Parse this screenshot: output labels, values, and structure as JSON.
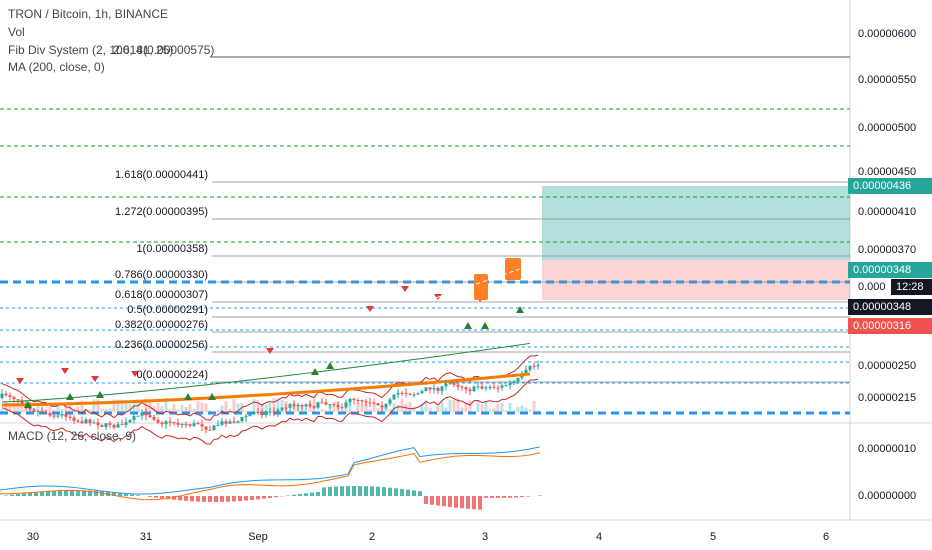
{
  "header": {
    "symbol": "TRON / Bitcoin, 1h, BINANCE",
    "vol": "Vol",
    "fib_div": "Fib Div System (2, 100, 41, 25)",
    "fib_ext": "2.618(0.00000575)",
    "ma": "MA (200, close, 0)"
  },
  "fib_levels": [
    "1.618(0.00000441)",
    "1.272(0.00000395)",
    "1(0.00000358)",
    "0.786(0.00000330)",
    "0.618(0.00000307)",
    "0.5(0.00000291)",
    "0.382(0.00000276)",
    "0.236(0.00000256)",
    "0(0.00000224)"
  ],
  "price_axis": [
    "0.00000600",
    "0.00000550",
    "0.00000500",
    "0.00000450",
    "0.00000410",
    "0.00000370",
    "0.00000250",
    "0.00000215"
  ],
  "badges": {
    "target": "0.00000436",
    "last": "0.00000348",
    "partial": "0.000",
    "countdown": "12:28",
    "entry": "0.00000348",
    "stop": "0.00000316"
  },
  "macd": {
    "title": "MACD (12, 26, close, 9)",
    "axis": [
      "0.00000010",
      "0.00000000"
    ]
  },
  "time_axis": [
    "30",
    "31",
    "Sep",
    "2",
    "3",
    "4",
    "5",
    "6"
  ]
}
